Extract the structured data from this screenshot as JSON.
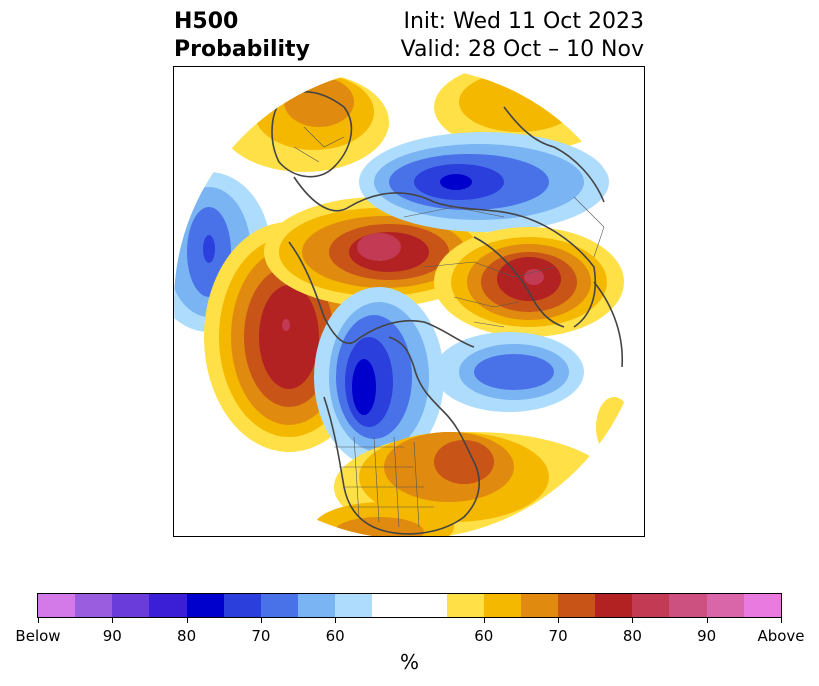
{
  "header": {
    "left_line1": "H500",
    "left_line2": "Probability",
    "right_line1": "Init: Wed 11 Oct 2023",
    "right_line2": "Valid: 28 Oct – 10 Nov"
  },
  "colorbar": {
    "unit": "%",
    "colors": [
      "#d47ae8",
      "#9b5de0",
      "#6a3ddb",
      "#3a1fd6",
      "#0000cc",
      "#2a3fdc",
      "#4a72e8",
      "#7ab4f2",
      "#addcfc",
      "#ffffff",
      "#ffffff",
      "#ffe047",
      "#f5b800",
      "#e08a0f",
      "#c85418",
      "#b22222",
      "#c23a54",
      "#cc5080",
      "#d966a8",
      "#e87ae0"
    ],
    "tick_labels": [
      "Below",
      "90",
      "80",
      "70",
      "60",
      "60",
      "70",
      "80",
      "90",
      "Above"
    ]
  },
  "map": {
    "colors": {
      "blue_light": "#addcfc",
      "blue_mid": "#7ab4f2",
      "blue": "#4a72e8",
      "blue_deep": "#2a3fdc",
      "blue_core": "#0000cc",
      "yellow": "#ffe047",
      "gold": "#f5b800",
      "orange": "#e08a0f",
      "burnt": "#c85418",
      "red": "#b22222",
      "rose": "#c23a54"
    }
  }
}
